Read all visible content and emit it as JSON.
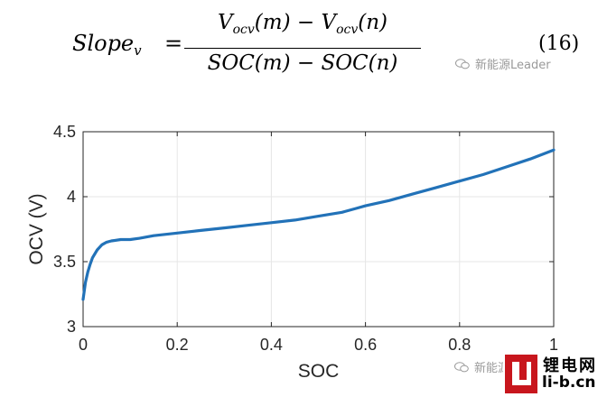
{
  "equation": {
    "lhs_base": "Slope",
    "lhs_sub": "v",
    "equals": "=",
    "num_a": "V",
    "num_a_sub": "ocv",
    "num_a_arg": "(m) − ",
    "num_b": "V",
    "num_b_sub": "ocv",
    "num_b_arg": "(n)",
    "denominator": "SOC(m) − SOC(n)",
    "number": "(16)"
  },
  "watermarks": {
    "top": "新能源Leader",
    "bottom": "新能源Leader"
  },
  "logo": {
    "name_cn": "锂电网",
    "url": "li-b.cn"
  },
  "colors": {
    "line": "#2272b8",
    "grid": "#e6e6e6",
    "axis": "#262626",
    "logo": "#c8161d"
  },
  "chart_data": {
    "type": "line",
    "title": "",
    "xlabel": "SOC",
    "ylabel": "OCV (V)",
    "xlim": [
      0,
      1
    ],
    "ylim": [
      3,
      4.5
    ],
    "xticks": [
      0,
      0.2,
      0.4,
      0.6,
      0.8,
      1
    ],
    "xtick_labels": [
      "0",
      "0.2",
      "0.4",
      "0.6",
      "0.8",
      "1"
    ],
    "yticks": [
      3,
      3.5,
      4,
      4.5
    ],
    "ytick_labels": [
      "3",
      "3.5",
      "4",
      "4.5"
    ],
    "grid": true,
    "series": [
      {
        "x": [
          0,
          0.005,
          0.01,
          0.015,
          0.02,
          0.03,
          0.04,
          0.05,
          0.06,
          0.08,
          0.1,
          0.12,
          0.15,
          0.2,
          0.25,
          0.3,
          0.35,
          0.4,
          0.45,
          0.5,
          0.55,
          0.58,
          0.6,
          0.65,
          0.7,
          0.75,
          0.8,
          0.85,
          0.9,
          0.95,
          1.0
        ],
        "y": [
          3.21,
          3.34,
          3.42,
          3.48,
          3.53,
          3.59,
          3.63,
          3.65,
          3.66,
          3.67,
          3.67,
          3.68,
          3.7,
          3.72,
          3.74,
          3.76,
          3.78,
          3.8,
          3.82,
          3.85,
          3.88,
          3.91,
          3.93,
          3.97,
          4.02,
          4.07,
          4.12,
          4.17,
          4.23,
          4.29,
          4.36
        ]
      }
    ]
  }
}
